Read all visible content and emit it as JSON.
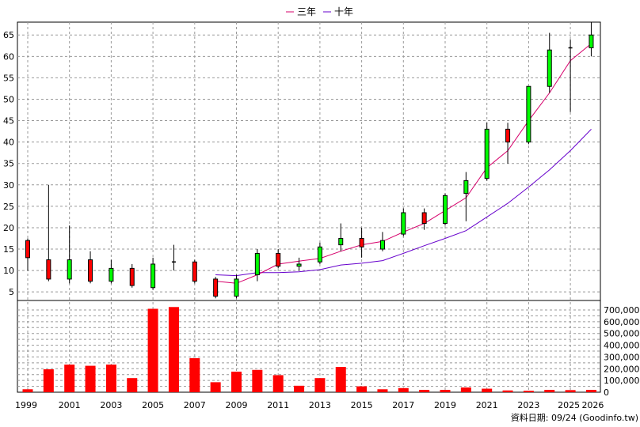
{
  "chart_data": {
    "type": "candlestick+volume",
    "legend": [
      {
        "label": "三年",
        "color": "#d6006b"
      },
      {
        "label": "十年",
        "color": "#6600cc"
      }
    ],
    "price_axis": {
      "ylim": [
        3,
        68
      ],
      "ticks": [
        5,
        10,
        15,
        20,
        25,
        30,
        35,
        40,
        45,
        50,
        55,
        60,
        65
      ]
    },
    "volume_axis": {
      "ylim": [
        0,
        700000
      ],
      "ticks": [
        0,
        100000,
        200000,
        300000,
        400000,
        500000,
        600000,
        700000
      ],
      "tick_labels": [
        "0",
        "100,000",
        "200,000",
        "300,000",
        "400,000",
        "500,000",
        "600,000",
        "700,000"
      ]
    },
    "x_ticks": [
      "1999",
      "2001",
      "2003",
      "2005",
      "2007",
      "2009",
      "2011",
      "2013",
      "2015",
      "2017",
      "2019",
      "2021",
      "2023",
      "2025",
      "2026"
    ],
    "candles": [
      {
        "year": 1999,
        "open": 13,
        "close": 17,
        "high": 17.5,
        "low": 10
      },
      {
        "year": 2000,
        "open": 8,
        "close": 12.5,
        "high": 30,
        "low": 7.5
      },
      {
        "year": 2001,
        "open": 12.5,
        "close": 8,
        "high": 20.5,
        "low": 7
      },
      {
        "year": 2002,
        "open": 7.5,
        "close": 12.5,
        "high": 14.5,
        "low": 7
      },
      {
        "year": 2003,
        "open": 10.5,
        "close": 7.5,
        "high": 12.5,
        "low": 7
      },
      {
        "year": 2004,
        "open": 6.5,
        "close": 10.5,
        "high": 11.5,
        "low": 6
      },
      {
        "year": 2005,
        "open": 11.5,
        "close": 6,
        "high": 13,
        "low": 5.5
      },
      {
        "year": 2006,
        "open": 12,
        "close": 12,
        "high": 16,
        "low": 10
      },
      {
        "year": 2007,
        "open": 7.5,
        "close": 12,
        "high": 12.5,
        "low": 7
      },
      {
        "year": 2008,
        "open": 4,
        "close": 8,
        "high": 8.5,
        "low": 3.5
      },
      {
        "year": 2009,
        "open": 8,
        "close": 4,
        "high": 9,
        "low": 3.5
      },
      {
        "year": 2010,
        "open": 14,
        "close": 9,
        "high": 15,
        "low": 7.5
      },
      {
        "year": 2011,
        "open": 11,
        "close": 14,
        "high": 15,
        "low": 10.5
      },
      {
        "year": 2012,
        "open": 11.5,
        "close": 11,
        "high": 13,
        "low": 10
      },
      {
        "year": 2013,
        "open": 15.5,
        "close": 12,
        "high": 16.5,
        "low": 11.5
      },
      {
        "year": 2014,
        "open": 17.5,
        "close": 16,
        "high": 21,
        "low": 14.5
      },
      {
        "year": 2015,
        "open": 15.5,
        "close": 17.5,
        "high": 20,
        "low": 13
      },
      {
        "year": 2016,
        "open": 17,
        "close": 15,
        "high": 19,
        "low": 14.5
      },
      {
        "year": 2017,
        "open": 23.5,
        "close": 18.5,
        "high": 24.5,
        "low": 18
      },
      {
        "year": 2018,
        "open": 21,
        "close": 23.5,
        "high": 24.5,
        "low": 19.5
      },
      {
        "year": 2019,
        "open": 27.5,
        "close": 21,
        "high": 28,
        "low": 20.5
      },
      {
        "year": 2020,
        "open": 31,
        "close": 28,
        "high": 33,
        "low": 21.5
      },
      {
        "year": 2021,
        "open": 43,
        "close": 31.5,
        "high": 44.5,
        "low": 31
      },
      {
        "year": 2022,
        "open": 40,
        "close": 43,
        "high": 44.5,
        "low": 35
      },
      {
        "year": 2023,
        "open": 53,
        "close": 40,
        "high": 53,
        "low": 39.5
      },
      {
        "year": 2024,
        "open": 61.5,
        "close": 53,
        "high": 65.5,
        "low": 51.5
      },
      {
        "year": 2025,
        "open": 62,
        "close": 62,
        "high": 64,
        "low": 47
      },
      {
        "year": 2026,
        "open": 65,
        "close": 62,
        "high": 68,
        "low": 60
      }
    ],
    "ma3": [
      {
        "year": 2008,
        "value": 7.5
      },
      {
        "year": 2009,
        "value": 7
      },
      {
        "year": 2010,
        "value": 9
      },
      {
        "year": 2011,
        "value": 11.5
      },
      {
        "year": 2012,
        "value": 12.2
      },
      {
        "year": 2013,
        "value": 12.8
      },
      {
        "year": 2014,
        "value": 14.5
      },
      {
        "year": 2015,
        "value": 16
      },
      {
        "year": 2016,
        "value": 16.8
      },
      {
        "year": 2017,
        "value": 19
      },
      {
        "year": 2018,
        "value": 21
      },
      {
        "year": 2019,
        "value": 24
      },
      {
        "year": 2020,
        "value": 27
      },
      {
        "year": 2021,
        "value": 34
      },
      {
        "year": 2022,
        "value": 38
      },
      {
        "year": 2023,
        "value": 45
      },
      {
        "year": 2024,
        "value": 51.5
      },
      {
        "year": 2025,
        "value": 59
      },
      {
        "year": 2026,
        "value": 63
      }
    ],
    "ma10": [
      {
        "year": 2008,
        "value": 9
      },
      {
        "year": 2009,
        "value": 8.8
      },
      {
        "year": 2010,
        "value": 9.5
      },
      {
        "year": 2011,
        "value": 9.5
      },
      {
        "year": 2012,
        "value": 9.7
      },
      {
        "year": 2013,
        "value": 10.2
      },
      {
        "year": 2014,
        "value": 11.3
      },
      {
        "year": 2015,
        "value": 11.7
      },
      {
        "year": 2016,
        "value": 12.3
      },
      {
        "year": 2017,
        "value": 14
      },
      {
        "year": 2018,
        "value": 15.8
      },
      {
        "year": 2019,
        "value": 17.5
      },
      {
        "year": 2020,
        "value": 19.3
      },
      {
        "year": 2021,
        "value": 22.5
      },
      {
        "year": 2022,
        "value": 25.7
      },
      {
        "year": 2023,
        "value": 29.5
      },
      {
        "year": 2024,
        "value": 33.5
      },
      {
        "year": 2025,
        "value": 38
      },
      {
        "year": 2026,
        "value": 43
      }
    ],
    "volumes": [
      {
        "year": 1999,
        "value": 25000
      },
      {
        "year": 2000,
        "value": 195000
      },
      {
        "year": 2001,
        "value": 235000
      },
      {
        "year": 2002,
        "value": 225000
      },
      {
        "year": 2003,
        "value": 235000
      },
      {
        "year": 2004,
        "value": 120000
      },
      {
        "year": 2005,
        "value": 710000
      },
      {
        "year": 2006,
        "value": 725000
      },
      {
        "year": 2007,
        "value": 290000
      },
      {
        "year": 2008,
        "value": 85000
      },
      {
        "year": 2009,
        "value": 175000
      },
      {
        "year": 2010,
        "value": 190000
      },
      {
        "year": 2011,
        "value": 145000
      },
      {
        "year": 2012,
        "value": 55000
      },
      {
        "year": 2013,
        "value": 120000
      },
      {
        "year": 2014,
        "value": 215000
      },
      {
        "year": 2015,
        "value": 50000
      },
      {
        "year": 2016,
        "value": 25000
      },
      {
        "year": 2017,
        "value": 35000
      },
      {
        "year": 2018,
        "value": 20000
      },
      {
        "year": 2019,
        "value": 20000
      },
      {
        "year": 2020,
        "value": 40000
      },
      {
        "year": 2021,
        "value": 30000
      },
      {
        "year": 2022,
        "value": 15000
      },
      {
        "year": 2023,
        "value": 12000
      },
      {
        "year": 2024,
        "value": 20000
      },
      {
        "year": 2025,
        "value": 18000
      },
      {
        "year": 2026,
        "value": 20000
      }
    ],
    "source_note": "資料日期: 09/24  (Goodinfo.tw)"
  }
}
